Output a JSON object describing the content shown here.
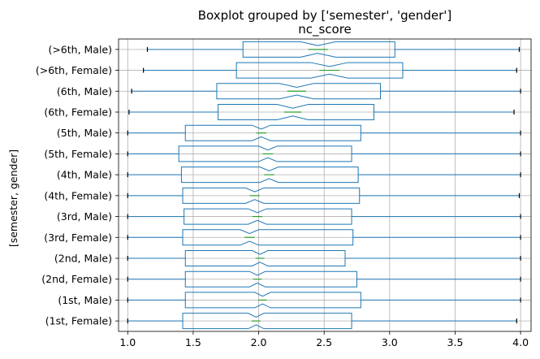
{
  "chart_data": {
    "type": "boxplot",
    "suptitle": "Boxplot grouped by ['semester', 'gender']",
    "title": "nc_score",
    "ylabel": "[semester, gender]",
    "xlabel": "",
    "orientation": "horizontal",
    "notched": true,
    "grid": true,
    "xlim": [
      0.93,
      4.08
    ],
    "xticks": [
      1.0,
      1.5,
      2.0,
      2.5,
      3.0,
      3.5,
      4.0
    ],
    "xtick_labels": [
      "1.0",
      "1.5",
      "2.0",
      "2.5",
      "3.0",
      "3.5",
      "4.0"
    ],
    "colors": {
      "box": "#1f77b4",
      "median": "#2ca02c",
      "whisker": "#1f77b4",
      "cap": "#000000"
    },
    "categories": [
      "(>6th, Male)",
      "(>6th, Female)",
      "(6th, Male)",
      "(6th, Female)",
      "(5th, Male)",
      "(5th, Female)",
      "(4th, Male)",
      "(4th, Female)",
      "(3rd, Male)",
      "(3rd, Female)",
      "(2nd, Male)",
      "(2nd, Female)",
      "(1st, Male)",
      "(1st, Female)"
    ],
    "boxes": [
      {
        "min": 1.15,
        "q1": 1.88,
        "median": 2.45,
        "q3": 3.04,
        "max": 3.99,
        "notch_lo": 2.32,
        "notch_hi": 2.59
      },
      {
        "min": 1.12,
        "q1": 1.83,
        "median": 2.54,
        "q3": 3.1,
        "max": 3.97,
        "notch_lo": 2.4,
        "notch_hi": 2.68
      },
      {
        "min": 1.03,
        "q1": 1.68,
        "median": 2.29,
        "q3": 2.93,
        "max": 4.0,
        "notch_lo": 2.16,
        "notch_hi": 2.42
      },
      {
        "min": 1.01,
        "q1": 1.69,
        "median": 2.26,
        "q3": 2.88,
        "max": 3.95,
        "notch_lo": 2.14,
        "notch_hi": 2.38
      },
      {
        "min": 1.0,
        "q1": 1.44,
        "median": 2.02,
        "q3": 2.78,
        "max": 4.0,
        "notch_lo": 1.95,
        "notch_hi": 2.09
      },
      {
        "min": 1.0,
        "q1": 1.39,
        "median": 2.07,
        "q3": 2.71,
        "max": 4.0,
        "notch_lo": 2.0,
        "notch_hi": 2.14
      },
      {
        "min": 1.0,
        "q1": 1.41,
        "median": 2.08,
        "q3": 2.76,
        "max": 4.0,
        "notch_lo": 2.01,
        "notch_hi": 2.15
      },
      {
        "min": 1.0,
        "q1": 1.42,
        "median": 1.97,
        "q3": 2.77,
        "max": 3.99,
        "notch_lo": 1.9,
        "notch_hi": 2.04
      },
      {
        "min": 1.0,
        "q1": 1.43,
        "median": 1.99,
        "q3": 2.71,
        "max": 4.0,
        "notch_lo": 1.92,
        "notch_hi": 2.06
      },
      {
        "min": 1.0,
        "q1": 1.42,
        "median": 1.93,
        "q3": 2.72,
        "max": 4.0,
        "notch_lo": 1.86,
        "notch_hi": 2.0
      },
      {
        "min": 1.0,
        "q1": 1.44,
        "median": 2.01,
        "q3": 2.66,
        "max": 4.0,
        "notch_lo": 1.95,
        "notch_hi": 2.07
      },
      {
        "min": 1.0,
        "q1": 1.44,
        "median": 1.99,
        "q3": 2.75,
        "max": 4.0,
        "notch_lo": 1.93,
        "notch_hi": 2.05
      },
      {
        "min": 1.0,
        "q1": 1.44,
        "median": 2.03,
        "q3": 2.78,
        "max": 4.0,
        "notch_lo": 1.97,
        "notch_hi": 2.09
      },
      {
        "min": 1.0,
        "q1": 1.42,
        "median": 1.98,
        "q3": 2.71,
        "max": 3.97,
        "notch_lo": 1.92,
        "notch_hi": 2.04
      }
    ]
  }
}
